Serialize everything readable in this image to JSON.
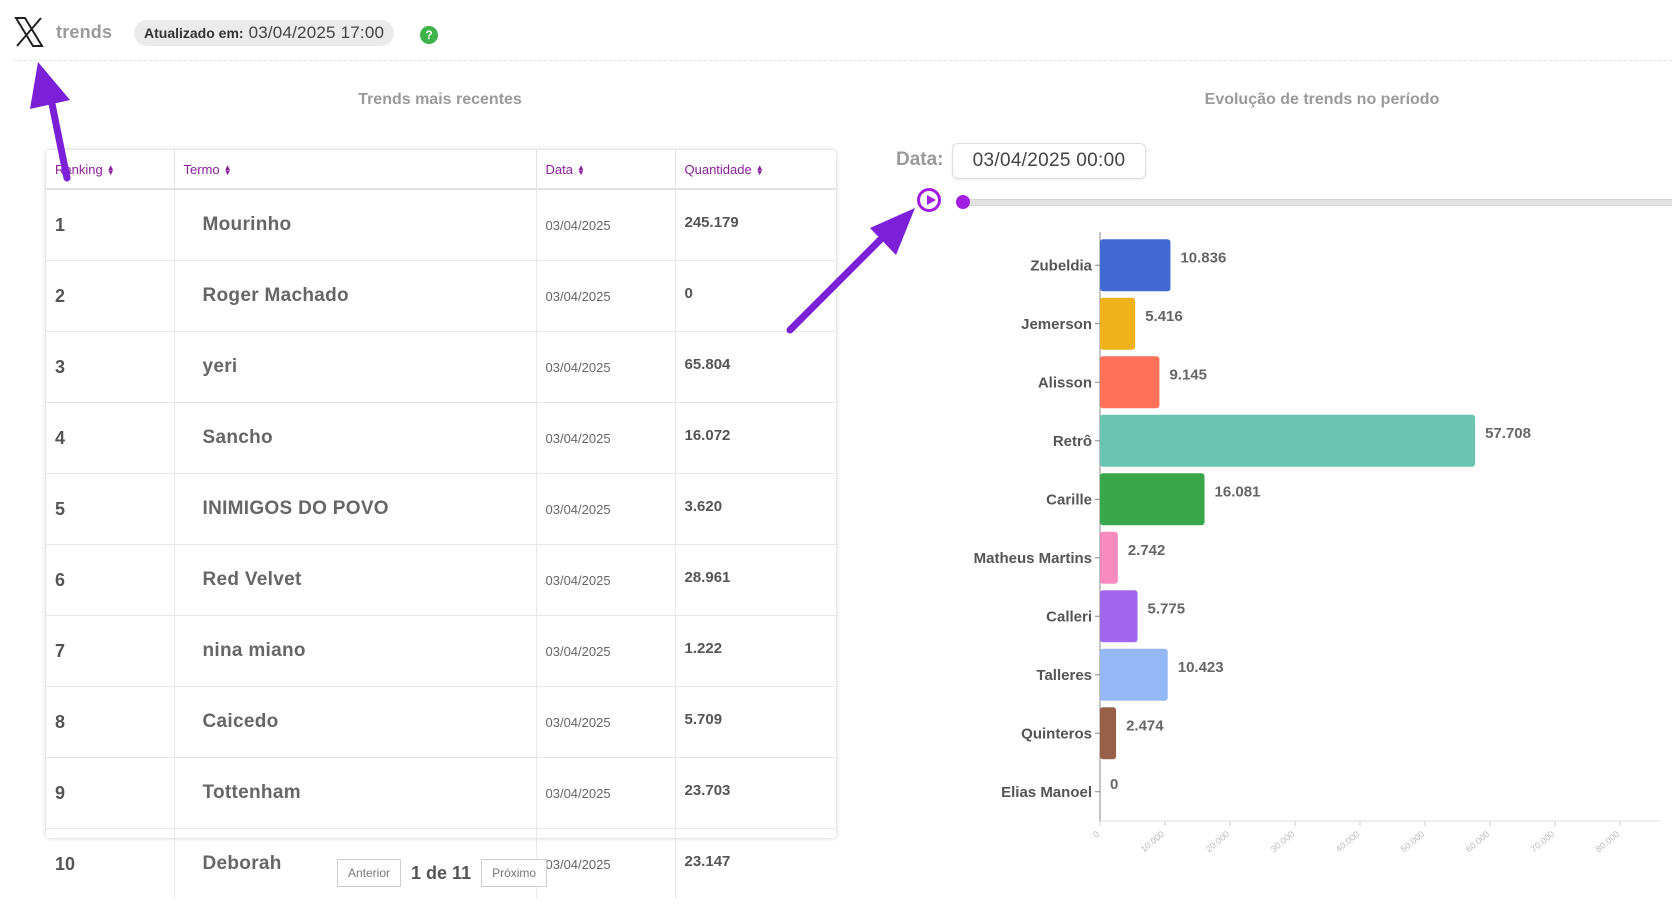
{
  "header": {
    "brand": "trends",
    "updated_label": "Atualizado em:",
    "updated_value": "03/04/2025 17:00",
    "help_symbol": "?",
    "logo_icon": "x-logo-icon",
    "help_icon": "question-circle-icon"
  },
  "titles": {
    "left": "Trends mais recentes",
    "right": "Evolução de trends no período"
  },
  "table": {
    "columns": [
      "Ranking",
      "Termo",
      "Data",
      "Quantidade"
    ],
    "rows": [
      {
        "rank": "1",
        "term": "Mourinho",
        "date": "03/04/2025",
        "qty": "245.179"
      },
      {
        "rank": "2",
        "term": "Roger Machado",
        "date": "03/04/2025",
        "qty": "0"
      },
      {
        "rank": "3",
        "term": "yeri",
        "date": "03/04/2025",
        "qty": "65.804"
      },
      {
        "rank": "4",
        "term": "Sancho",
        "date": "03/04/2025",
        "qty": "16.072"
      },
      {
        "rank": "5",
        "term": "INIMIGOS DO POVO",
        "date": "03/04/2025",
        "qty": "3.620"
      },
      {
        "rank": "6",
        "term": "Red Velvet",
        "date": "03/04/2025",
        "qty": "28.961"
      },
      {
        "rank": "7",
        "term": "nina miano",
        "date": "03/04/2025",
        "qty": "1.222"
      },
      {
        "rank": "8",
        "term": "Caicedo",
        "date": "03/04/2025",
        "qty": "5.709"
      },
      {
        "rank": "9",
        "term": "Tottenham",
        "date": "03/04/2025",
        "qty": "23.703"
      },
      {
        "rank": "10",
        "term": "Deborah",
        "date": "03/04/2025",
        "qty": "23.147"
      }
    ]
  },
  "pagination": {
    "prev": "Anterior",
    "info": "1 de 11",
    "next": "Próximo"
  },
  "date_control": {
    "label": "Data:",
    "value": "03/04/2025 00:00",
    "play_icon": "play-icon",
    "slider_position": 0
  },
  "chart_data": {
    "type": "bar",
    "orientation": "horizontal",
    "categories": [
      "Zubeldia",
      "Jemerson",
      "Alisson",
      "Retrô",
      "Carille",
      "Matheus Martins",
      "Calleri",
      "Talleres",
      "Quinteros",
      "Elias Manoel"
    ],
    "values": [
      10836,
      5416,
      9145,
      57708,
      16081,
      2742,
      5775,
      10423,
      2474,
      0
    ],
    "value_labels": [
      "10.836",
      "5.416",
      "9.145",
      "57.708",
      "16.081",
      "2.742",
      "5.775",
      "10.423",
      "2.474",
      "0"
    ],
    "colors": [
      "#4169d4",
      "#f0b21b",
      "#ff7059",
      "#69c5b0",
      "#3aa64a",
      "#f78bbd",
      "#a066ee",
      "#94b8f5",
      "#986049",
      "#cccccc"
    ],
    "xlim": [
      0,
      90000
    ],
    "xticks": [
      0,
      10000,
      20000,
      30000,
      40000,
      50000,
      60000,
      70000,
      80000
    ],
    "xtick_labels": [
      "0",
      "10.000",
      "20.000",
      "30.000",
      "40.000",
      "50.000",
      "60.000",
      "70.000",
      "80.000"
    ],
    "grid": false
  },
  "colors": {
    "accent": "#a11ee2",
    "header_link": "#8a1f9c",
    "annotation_arrow": "#7b1fd8"
  }
}
